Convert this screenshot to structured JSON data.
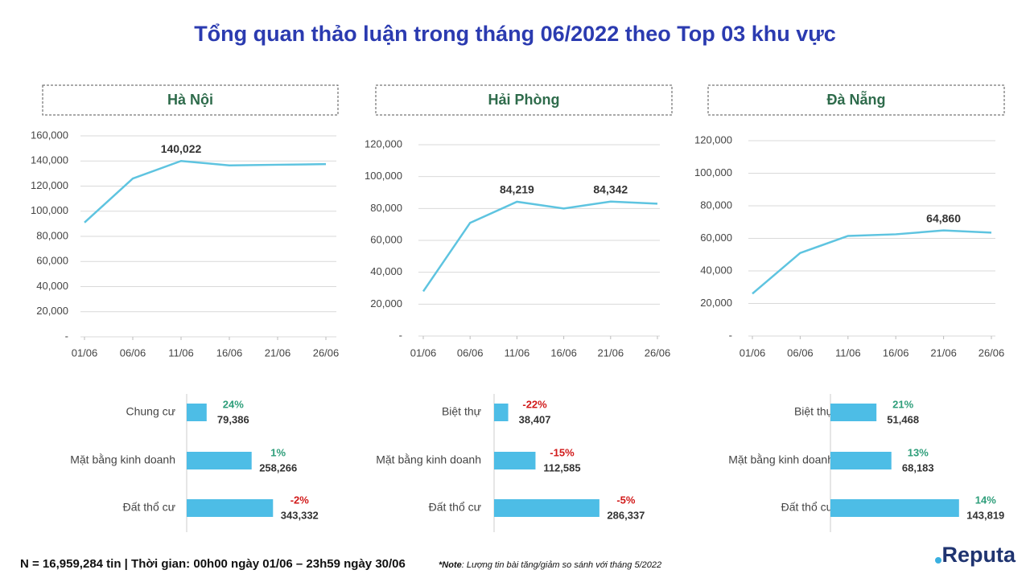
{
  "title": "Tổng quan thảo luận trong tháng 06/2022 theo Top 03 khu vực",
  "footer": "N = 16,959,284 tin | Thời gian: 00h00 ngày 01/06 – 23h59 ngày 30/06",
  "note_prefix": "*Note",
  "note": ": Lượng tin bài tăng/giảm so sánh với tháng 5/2022",
  "brand": "Reputa",
  "chart_data": [
    {
      "type": "line",
      "title": "Hà Nội",
      "color": "#5ec4e0",
      "categories": [
        "01/06",
        "06/06",
        "11/06",
        "16/06",
        "21/06",
        "26/06"
      ],
      "values": [
        91000,
        126000,
        140022,
        136500,
        137000,
        137500
      ],
      "value_labels": [
        null,
        null,
        "140,022",
        null,
        null,
        null
      ],
      "ylim": [
        0,
        160000
      ],
      "yticks": [
        {
          "value": 0,
          "label": "-"
        },
        {
          "value": 20000,
          "label": "20,000"
        },
        {
          "value": 40000,
          "label": "40,000"
        },
        {
          "value": 60000,
          "label": "60,000"
        },
        {
          "value": 80000,
          "label": "80,000"
        },
        {
          "value": 100000,
          "label": "100,000"
        },
        {
          "value": 120000,
          "label": "120,000"
        },
        {
          "value": 140000,
          "label": "140,000"
        },
        {
          "value": 160000,
          "label": "160,000"
        }
      ],
      "grid": true
    },
    {
      "type": "line",
      "title": "Hải Phòng",
      "color": "#5ec4e0",
      "categories": [
        "01/06",
        "06/06",
        "11/06",
        "16/06",
        "21/06",
        "26/06"
      ],
      "values": [
        28000,
        71000,
        84219,
        80000,
        84342,
        83000
      ],
      "value_labels": [
        null,
        null,
        "84,219",
        null,
        "84,342",
        null
      ],
      "ylim": [
        0,
        120000
      ],
      "yticks": [
        {
          "value": 0,
          "label": "-"
        },
        {
          "value": 20000,
          "label": "20,000"
        },
        {
          "value": 40000,
          "label": "40,000"
        },
        {
          "value": 60000,
          "label": "60,000"
        },
        {
          "value": 80000,
          "label": "80,000"
        },
        {
          "value": 100000,
          "label": "100,000"
        },
        {
          "value": 120000,
          "label": "120,000"
        }
      ],
      "grid": true
    },
    {
      "type": "line",
      "title": "Đà Nẵng",
      "color": "#5ec4e0",
      "categories": [
        "01/06",
        "06/06",
        "11/06",
        "16/06",
        "21/06",
        "26/06"
      ],
      "values": [
        26000,
        51000,
        61500,
        62500,
        64860,
        63500
      ],
      "value_labels": [
        null,
        null,
        null,
        null,
        "64,860",
        null
      ],
      "ylim": [
        0,
        120000
      ],
      "yticks": [
        {
          "value": 0,
          "label": "-"
        },
        {
          "value": 20000,
          "label": "20,000"
        },
        {
          "value": 40000,
          "label": "40,000"
        },
        {
          "value": 60000,
          "label": "60,000"
        },
        {
          "value": 80000,
          "label": "80,000"
        },
        {
          "value": 100000,
          "label": "100,000"
        },
        {
          "value": 120000,
          "label": "120,000"
        }
      ],
      "grid": true
    },
    {
      "type": "bar",
      "orientation": "horizontal",
      "color": "#4dbde6",
      "positive_color": "#2e9e7a",
      "negative_color": "#d11a1a",
      "categories": [
        "Chung cư",
        "Mặt bằng kinh doanh",
        "Đất thổ cư"
      ],
      "values": [
        79386,
        258266,
        343332
      ],
      "value_labels": [
        "79,386",
        "258,266",
        "343,332"
      ],
      "changes": [
        24,
        1,
        -2
      ],
      "change_labels": [
        "24%",
        "1%",
        "-2%"
      ],
      "xlim": [
        0,
        512000
      ]
    },
    {
      "type": "bar",
      "orientation": "horizontal",
      "color": "#4dbde6",
      "positive_color": "#2e9e7a",
      "negative_color": "#d11a1a",
      "categories": [
        "Biệt thự",
        "Mặt bằng kinh doanh",
        "Đất thổ cư"
      ],
      "values": [
        38407,
        112585,
        286337
      ],
      "value_labels": [
        "38,407",
        "112,585",
        "286,337"
      ],
      "changes": [
        -22,
        -15,
        -5
      ],
      "change_labels": [
        "-22%",
        "-15%",
        "-5%"
      ],
      "xlim": [
        0,
        350000
      ]
    },
    {
      "type": "bar",
      "orientation": "horizontal",
      "color": "#4dbde6",
      "positive_color": "#2e9e7a",
      "negative_color": "#d11a1a",
      "categories": [
        "Biệt thự",
        "Mặt bằng kinh doanh",
        "Đất thổ cư"
      ],
      "values": [
        51468,
        68183,
        143819
      ],
      "value_labels": [
        "51,468",
        "68,183",
        "143,819"
      ],
      "changes": [
        21,
        13,
        14
      ],
      "change_labels": [
        "21%",
        "13%",
        "14%"
      ],
      "xlim": [
        0,
        144000
      ]
    }
  ]
}
